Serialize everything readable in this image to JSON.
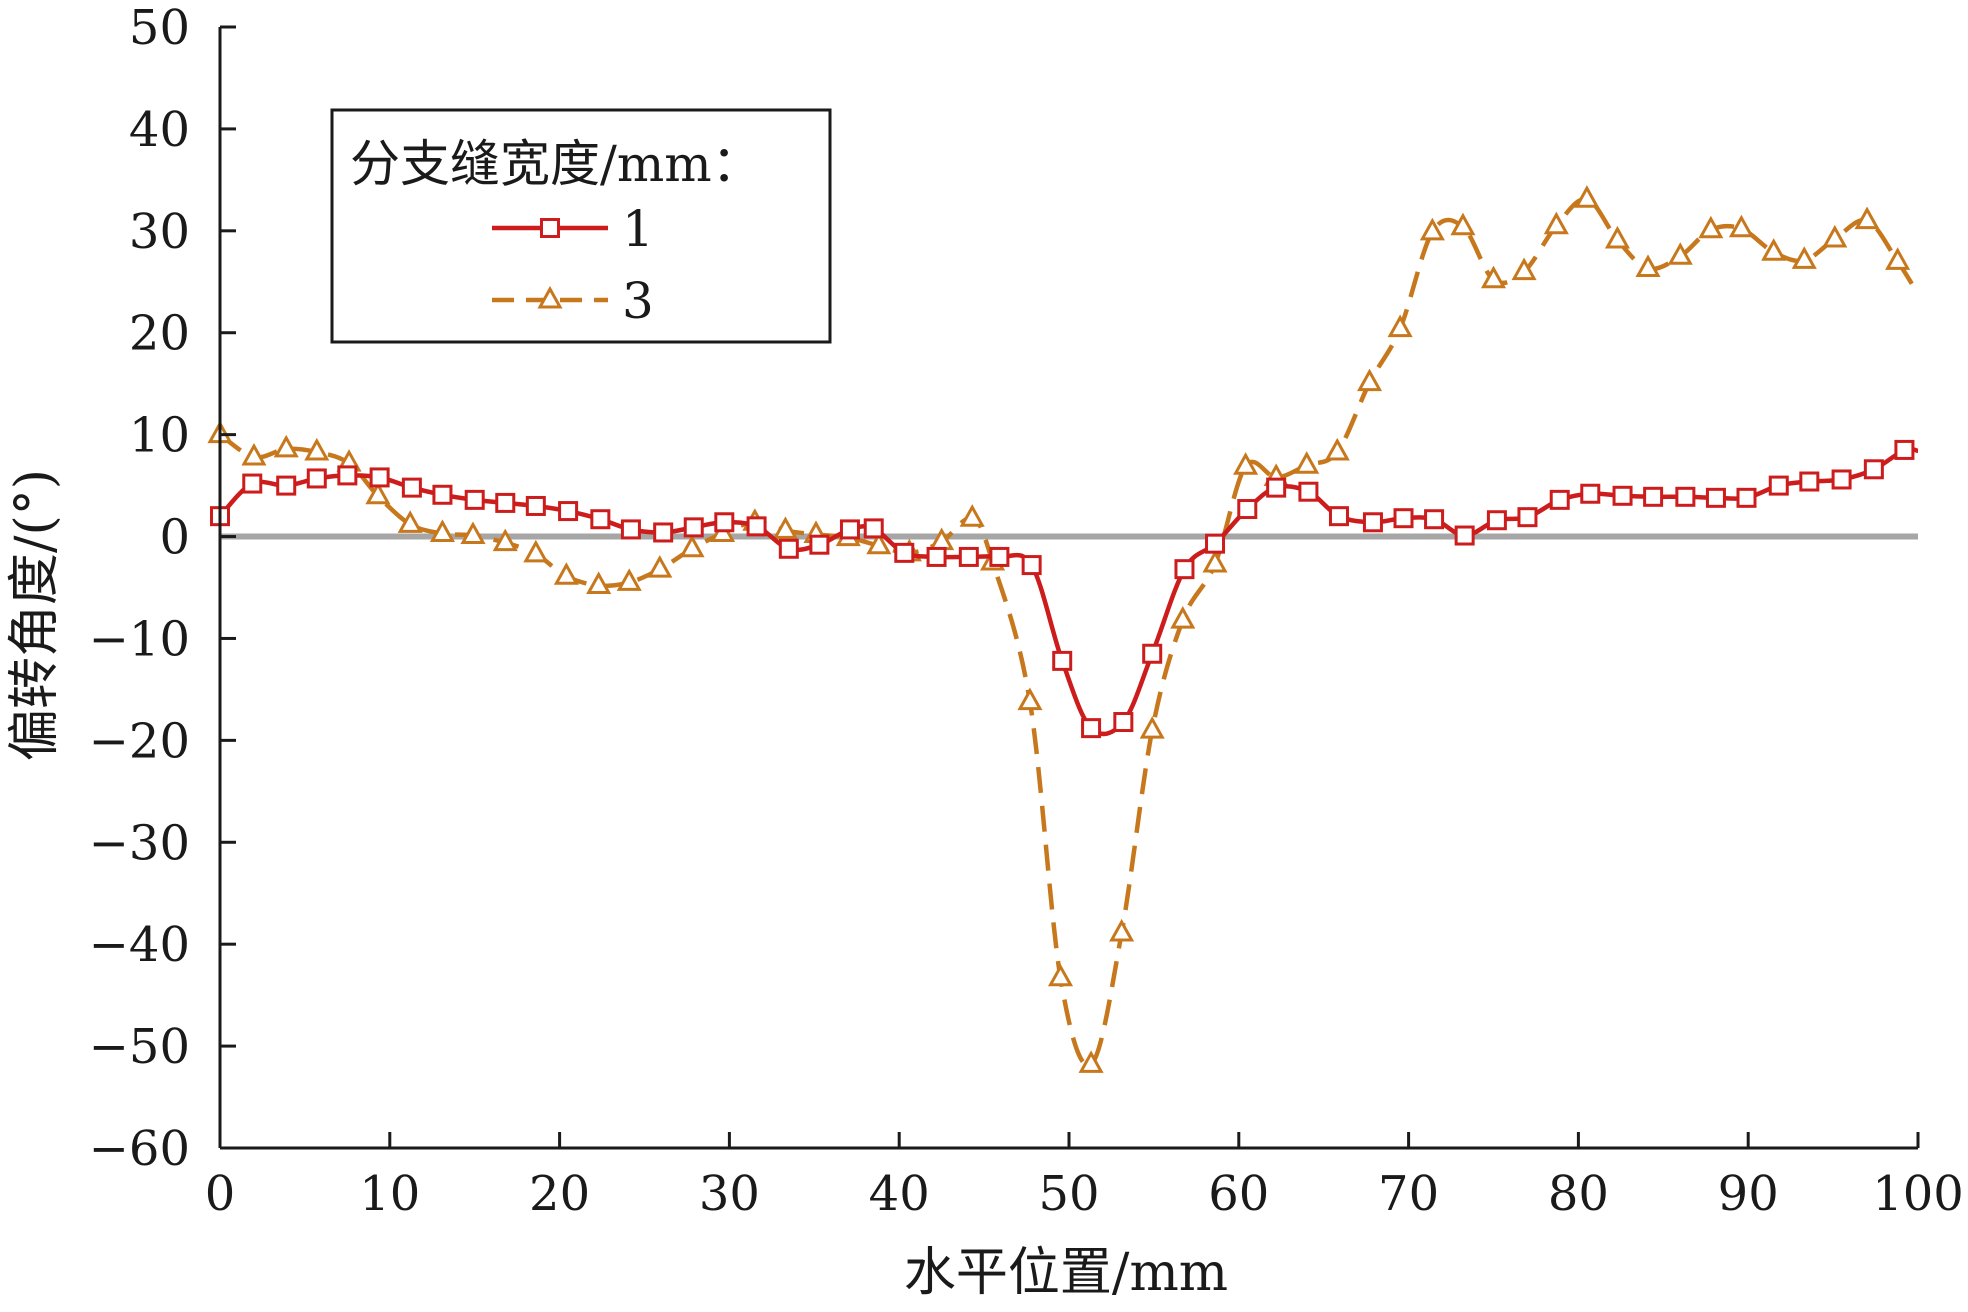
{
  "chart_data": {
    "type": "line",
    "title": "",
    "xlabel": "水平位置/mm",
    "ylabel": "偏转角度/(°)",
    "xlim": [
      0,
      100
    ],
    "ylim": [
      -60,
      50
    ],
    "xticks": [
      0,
      10,
      20,
      30,
      40,
      50,
      60,
      70,
      80,
      90,
      100
    ],
    "yticks": [
      -60,
      -50,
      -40,
      -30,
      -20,
      -10,
      0,
      10,
      20,
      30,
      40,
      50
    ],
    "xtick_labels": [
      "0",
      "10",
      "20",
      "30",
      "40",
      "50",
      "60",
      "70",
      "80",
      "90",
      "100"
    ],
    "ytick_labels": [
      "−60",
      "−50",
      "−40",
      "−30",
      "−20",
      "−10",
      "0",
      "10",
      "20",
      "30",
      "40",
      "50"
    ],
    "reference_line": {
      "y": 0,
      "color": "#a6a6a6"
    },
    "legend": {
      "title": "分支缝宽度/mm：",
      "position": "top-left"
    },
    "series": [
      {
        "name": "1",
        "color": "#cc1c1c",
        "line_style": "solid",
        "marker": "square",
        "x": [
          0,
          1.9,
          3.9,
          5.7,
          7.5,
          9.4,
          11.3,
          13.1,
          15.0,
          16.8,
          18.6,
          20.5,
          22.4,
          24.2,
          26.1,
          27.9,
          29.7,
          31.6,
          33.5,
          35.3,
          37.1,
          38.5,
          40.3,
          42.2,
          44.1,
          45.9,
          47.8,
          49.6,
          51.3,
          53.2,
          54.9,
          56.8,
          58.6,
          60.5,
          62.2,
          64.1,
          65.9,
          67.9,
          69.7,
          71.5,
          73.3,
          75.2,
          77.0,
          78.9,
          80.7,
          82.6,
          84.4,
          86.3,
          88.1,
          89.9,
          91.8,
          93.6,
          95.5,
          97.4,
          99.2,
          100
        ],
        "y": [
          2,
          5.2,
          5.0,
          5.7,
          6.0,
          5.8,
          4.8,
          4.1,
          3.6,
          3.3,
          3.0,
          2.5,
          1.7,
          0.7,
          0.4,
          0.9,
          1.4,
          1.0,
          -1.2,
          -0.8,
          0.7,
          0.8,
          -1.6,
          -2.0,
          -2.0,
          -2.0,
          -2.8,
          -12.2,
          -18.8,
          -18.2,
          -11.5,
          -3.2,
          -0.7,
          2.7,
          4.8,
          4.4,
          2.0,
          1.4,
          1.8,
          1.7,
          0.1,
          1.6,
          1.9,
          3.6,
          4.2,
          4.0,
          3.9,
          3.9,
          3.8,
          3.8,
          5.0,
          5.4,
          5.6,
          6.6,
          8.5,
          8.4
        ]
      },
      {
        "name": "3",
        "color": "#c8781c",
        "line_style": "dashed",
        "marker": "triangle",
        "x": [
          0,
          2.0,
          3.9,
          5.7,
          7.6,
          9.3,
          11.2,
          13.1,
          14.9,
          16.8,
          18.6,
          20.4,
          22.3,
          24.1,
          25.9,
          27.8,
          29.6,
          31.5,
          33.3,
          35.1,
          37.0,
          38.8,
          40.6,
          42.5,
          44.3,
          45.5,
          47.7,
          49.5,
          51.3,
          53.1,
          54.9,
          56.7,
          58.6,
          60.4,
          62.2,
          64.0,
          65.8,
          67.7,
          69.5,
          71.4,
          73.2,
          75.0,
          76.8,
          78.7,
          80.5,
          82.3,
          84.1,
          86.0,
          87.8,
          89.6,
          91.5,
          93.3,
          95.1,
          97.0,
          98.8,
          100
        ],
        "y": [
          10,
          7.8,
          8.6,
          8.3,
          7.2,
          4.0,
          1.2,
          0.3,
          0.1,
          -0.6,
          -1.7,
          -3.9,
          -4.8,
          -4.5,
          -3.2,
          -1.2,
          0.3,
          1.4,
          0.6,
          0.2,
          -0.1,
          -0.9,
          -1.6,
          -0.5,
          1.8,
          -2.5,
          -16.2,
          -43.3,
          -51.8,
          -38.9,
          -19.0,
          -8.2,
          -2.7,
          6.9,
          5.8,
          7.0,
          8.3,
          15.1,
          20.4,
          29.9,
          30.4,
          25.2,
          26.0,
          30.5,
          33.1,
          29.1,
          26.3,
          27.5,
          30.1,
          30.2,
          27.9,
          27.1,
          29.2,
          31.0,
          27.0,
          23.8
        ]
      }
    ]
  }
}
